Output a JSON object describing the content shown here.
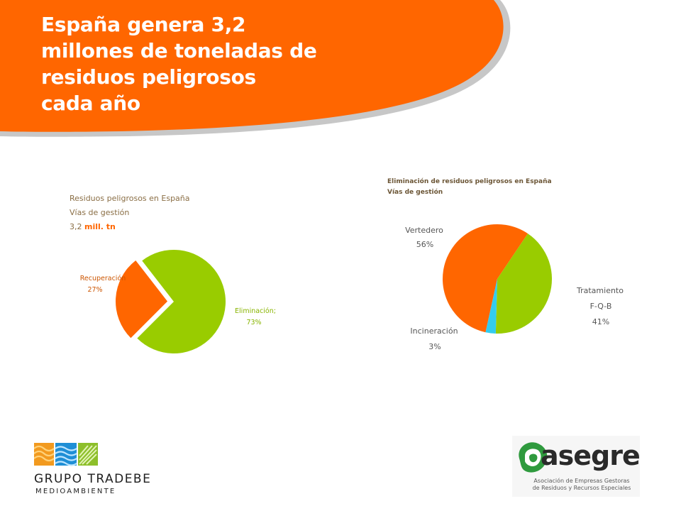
{
  "slide": {
    "title_lines": [
      "España genera 3,2",
      "millones de toneladas de",
      "residuos peligrosos",
      "cada año"
    ]
  },
  "colors": {
    "header_orange": "#ff6600",
    "slice_orange": "#ff6600",
    "slice_green": "#99cc00",
    "slice_cyan": "#33ccee"
  },
  "chart_data": [
    {
      "type": "pie",
      "title_lines": [
        "Residuos peligrosos en España",
        "Vías de gestión"
      ],
      "total_value": "3,2",
      "total_unit": "mill. tn",
      "series": [
        {
          "name": "Eliminación;",
          "label": "73%",
          "value": 73,
          "color": "#99cc00"
        },
        {
          "name": "Recuperación",
          "label": "27%",
          "value": 27,
          "color": "#ff6600",
          "exploded": true
        }
      ],
      "legend": "none"
    },
    {
      "type": "pie",
      "title_lines": [
        "Eliminación de residuos peligrosos en España",
        "Vías de gestión"
      ],
      "series": [
        {
          "name": "Vertedero",
          "label": "56%",
          "value": 56,
          "color": "#ff6600"
        },
        {
          "name": "Tratamiento F-Q-B",
          "label_lines": [
            "Tratamiento",
            "F-Q-B",
            "41%"
          ],
          "value": 41,
          "color": "#99cc00"
        },
        {
          "name": "Incineración",
          "label": "3%",
          "value": 3,
          "color": "#33ccee"
        }
      ],
      "legend": "none"
    }
  ],
  "logos": {
    "tradebe": {
      "name": "GRUPO TRADEBE",
      "sub": "MEDIOAMBIENTE"
    },
    "asegre": {
      "name": "asegre",
      "sub_lines": [
        "Asociación de Empresas Gestoras",
        "de Residuos y Recursos Especiales"
      ]
    }
  }
}
